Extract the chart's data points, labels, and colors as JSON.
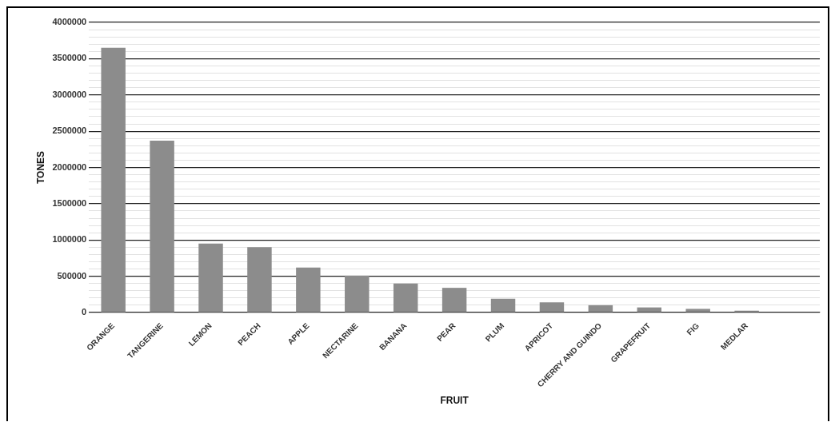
{
  "chart_data": {
    "type": "bar",
    "xlabel": "FRUIT",
    "ylabel": "TONES",
    "categories": [
      "ORANGE",
      "TANGERINE",
      "LEMON",
      "PEACH",
      "APPLE",
      "NECTARINE",
      "BANANA",
      "PEAR",
      "PLUM",
      "APRICOT",
      "CHERRY AND GUINDO",
      "GRAPEFRUIT",
      "FIG",
      "MEDLAR",
      null
    ],
    "values": [
      3650000,
      2370000,
      950000,
      900000,
      620000,
      510000,
      400000,
      340000,
      190000,
      140000,
      100000,
      70000,
      50000,
      25000,
      null
    ],
    "color": "#8c8c8c",
    "ylim": [
      0,
      4000000
    ],
    "yticks": [
      0,
      {
        "value": 100000,
        "label": null
      },
      {
        "value": 200000,
        "label": null
      },
      {
        "value": 300000,
        "label": null
      },
      {
        "value": 400000,
        "label": null
      },
      500000,
      {
        "value": 600000,
        "label": null
      },
      {
        "value": 700000,
        "label": null
      },
      {
        "value": 800000,
        "label": null
      },
      {
        "value": 900000,
        "label": null
      },
      1000000,
      {
        "value": 1100000,
        "label": null
      },
      {
        "value": 1200000,
        "label": null
      },
      {
        "value": 1300000,
        "label": null
      },
      {
        "value": 1400000,
        "label": null
      },
      1500000,
      {
        "value": 1600000,
        "label": null
      },
      {
        "value": 1700000,
        "label": null
      },
      {
        "value": 1800000,
        "label": null
      },
      {
        "value": 1900000,
        "label": null
      },
      2000000,
      {
        "value": 2100000,
        "label": null
      },
      {
        "value": 2200000,
        "label": null
      },
      {
        "value": 2300000,
        "label": null
      },
      {
        "value": 2400000,
        "label": null
      },
      2500000,
      {
        "value": 2600000,
        "label": null
      },
      {
        "value": 2700000,
        "label": null
      },
      {
        "value": 2800000,
        "label": null
      },
      {
        "value": 2900000,
        "label": null
      },
      3000000,
      {
        "value": 3100000,
        "label": null
      },
      {
        "value": 3200000,
        "label": null
      },
      {
        "value": 3300000,
        "label": null
      },
      {
        "value": 3400000,
        "label": null
      },
      3500000,
      {
        "value": 3600000,
        "label": null
      },
      {
        "value": 3700000,
        "label": null
      },
      {
        "value": 3800000,
        "label": null
      },
      {
        "value": 3900000,
        "label": null
      },
      4000000
    ],
    "grid": "y",
    "legend": false
  }
}
